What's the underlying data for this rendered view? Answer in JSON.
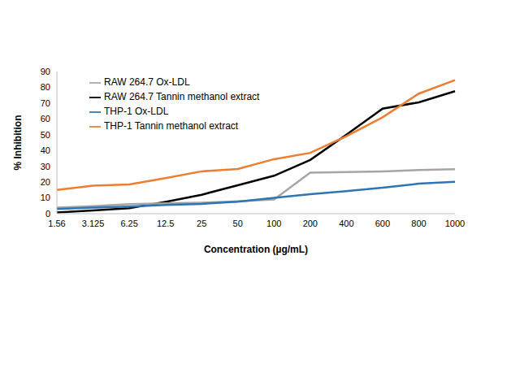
{
  "chart_data": {
    "type": "line",
    "x_label": "Concentration (µg/mL)",
    "y_label": "% Inhibition",
    "categories": [
      "1.56",
      "3.125",
      "6.25",
      "12.5",
      "25",
      "50",
      "100",
      "200",
      "400",
      "600",
      "800",
      "1000"
    ],
    "series": [
      {
        "name": "RAW 264.7 Tannin methanol extract",
        "color": "#000000",
        "values": [
          0.8,
          2,
          3.5,
          7.5,
          12,
          18,
          24,
          34,
          50,
          66.5,
          70.5,
          77.5
        ]
      },
      {
        "name": "THP-1 Tannin methanol extract",
        "color": "#ed7d31",
        "values": [
          15,
          17.8,
          18.5,
          22.5,
          26.8,
          28.3,
          34.5,
          38.5,
          49,
          61,
          76,
          84.5
        ]
      },
      {
        "name": "RAW 264.7 Ox-LDL",
        "color": "#a5a5a5",
        "values": [
          3.8,
          4.8,
          6,
          6.5,
          7,
          7.8,
          9,
          26,
          26.3,
          26.8,
          27.6,
          28.2
        ]
      },
      {
        "name": "THP-1 Ox-LDL",
        "color": "#2e75b6",
        "values": [
          3,
          3.8,
          4.5,
          5.5,
          6.2,
          7.6,
          10,
          12.3,
          14.3,
          16.4,
          19,
          20.2
        ]
      }
    ],
    "ylim": [
      0,
      90
    ],
    "yticks": [
      0,
      10,
      20,
      30,
      40,
      50,
      60,
      70,
      80,
      90
    ],
    "grid": false,
    "legend": "upper left"
  }
}
